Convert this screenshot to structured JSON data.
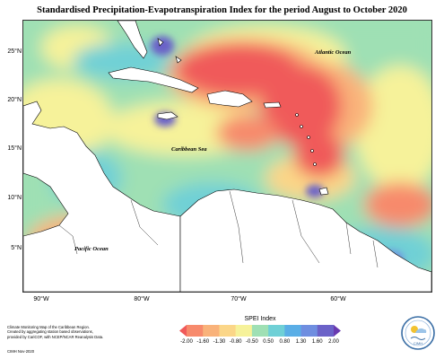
{
  "title": "Standardised Precipitation-Evapotranspiration Index for the period August to October 2020",
  "lat_labels": [
    "25°N",
    "20°N",
    "15°N",
    "10°N",
    "5°N"
  ],
  "lon_labels": [
    "90°W",
    "80°W",
    "70°W",
    "60°W"
  ],
  "place_labels": {
    "atlantic": "Atlantic Ocean",
    "caribbean": "Caribbean Sea",
    "pacific": "Pacific Ocean"
  },
  "legend": {
    "title": "SPEI Index",
    "ticks": [
      "-2.00",
      "-1.60",
      "-1.30",
      "-0.80",
      "-0.50",
      "0.50",
      "0.80",
      "1.30",
      "1.60",
      "2.00"
    ],
    "colors": [
      "#f05a5a",
      "#f78a6c",
      "#f9b27a",
      "#fbd688",
      "#f6f29a",
      "#9fe0b4",
      "#6fd0d6",
      "#5aaee6",
      "#6f8ee0",
      "#6b62c8",
      "#6a3ab0"
    ]
  },
  "footnote": {
    "line1": "Climate Monitoring Map of the Caribbean Region.",
    "line2": "Created by aggregating station based observations,",
    "line3": "provided by CariCOF, with NCEP/NCAR Reanalysis Data.",
    "date": "CIMH Nov-2020"
  },
  "logo": {
    "text": "CIMH",
    "icon": "cimh-logo-icon"
  }
}
